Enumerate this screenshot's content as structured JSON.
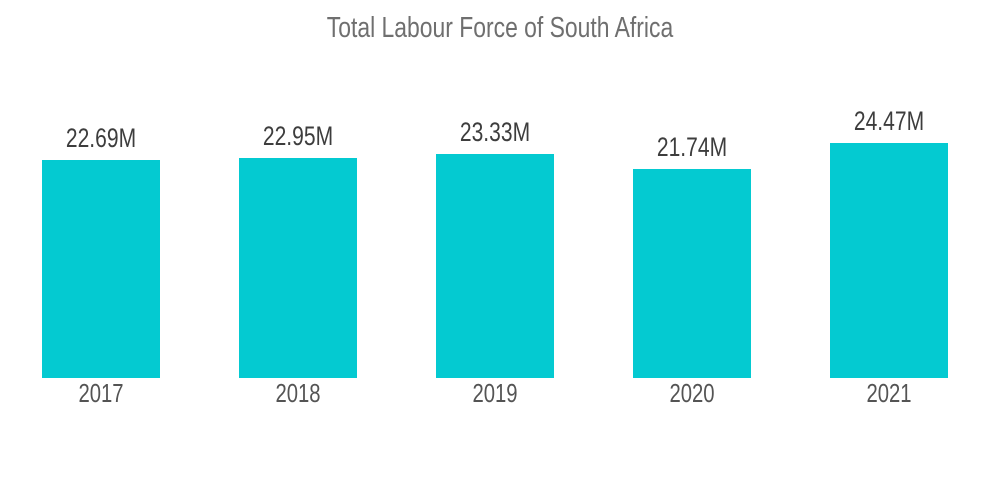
{
  "page": {
    "background": "#ffffff"
  },
  "chart_data": {
    "type": "bar",
    "title": "Total Labour Force of South Africa",
    "categories": [
      "2017",
      "2018",
      "2019",
      "2020",
      "2021"
    ],
    "values": [
      22.69,
      22.95,
      23.33,
      21.74,
      24.47
    ],
    "value_labels": [
      "22.69M",
      "22.95M",
      "23.33M",
      "21.74M",
      "24.47M"
    ],
    "unit": "M",
    "xlabel": "",
    "ylabel": "",
    "ylim": [
      0,
      34
    ],
    "grid": false,
    "legend": false,
    "axes_visible": false,
    "bar_color": "#04CAD1",
    "title_color": "#6F6F6F",
    "value_label_color": "#3D3D3D",
    "category_label_color": "#545454"
  }
}
